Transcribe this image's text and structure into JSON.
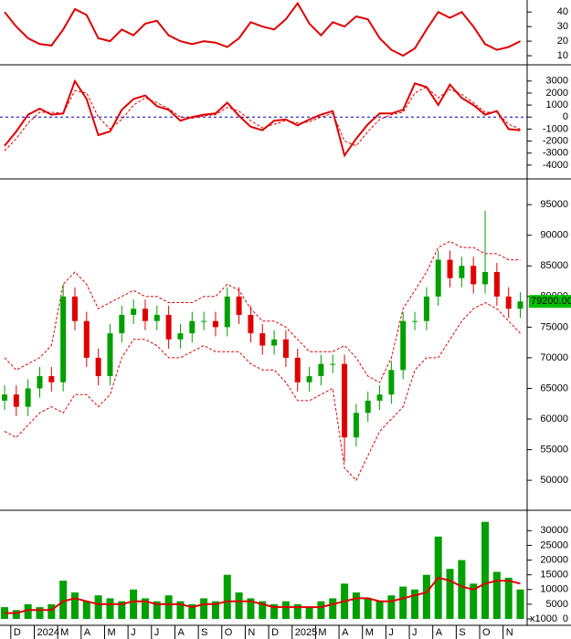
{
  "chart_data": [
    {
      "type": "line",
      "ylim": [
        5,
        47
      ],
      "yticks": [
        10,
        20,
        30,
        40
      ],
      "series": [
        {
          "color": "#e00000",
          "values": [
            40,
            30,
            22,
            18,
            17,
            28,
            42,
            38,
            22,
            20,
            28,
            24,
            32,
            34,
            24,
            20,
            18,
            20,
            19,
            16,
            22,
            33,
            30,
            28,
            35,
            46,
            32,
            24,
            33,
            30,
            37,
            35,
            22,
            14,
            10,
            15,
            28,
            40,
            36,
            40,
            30,
            18,
            14,
            16,
            20
          ]
        }
      ]
    },
    {
      "type": "line",
      "ylim": [
        -5000,
        4200
      ],
      "yticks": [
        -4000,
        -3000,
        -2000,
        -1000,
        0,
        1000,
        2000,
        3000
      ],
      "hlines": [
        {
          "value": 0,
          "color": "#0000c0"
        }
      ],
      "series": [
        {
          "color": "#e00000",
          "values": [
            -2400,
            -1200,
            200,
            700,
            200,
            300,
            3000,
            1500,
            -1500,
            -1200,
            600,
            1500,
            1800,
            900,
            600,
            -300,
            0,
            200,
            300,
            1200,
            100,
            -800,
            -1100,
            -300,
            -200,
            -700,
            -200,
            200,
            500,
            -3200,
            -1800,
            -600,
            300,
            300,
            600,
            2800,
            2500,
            1000,
            2700,
            1600,
            1000,
            200,
            500,
            -1000,
            -1100
          ]
        },
        {
          "color": "#e00000",
          "dashed": true,
          "values": [
            -2800,
            -1800,
            -500,
            400,
            400,
            300,
            2200,
            2000,
            0,
            -1000,
            -200,
            1000,
            1600,
            1200,
            700,
            0,
            -100,
            100,
            200,
            800,
            500,
            -300,
            -900,
            -600,
            -300,
            -500,
            -400,
            0,
            300,
            -2000,
            -2400,
            -1200,
            -200,
            200,
            400,
            2000,
            2500,
            1600,
            2300,
            1900,
            1200,
            400,
            400,
            -600,
            -1000
          ]
        }
      ]
    },
    {
      "type": "candlestick",
      "ylim": [
        45400,
        98900
      ],
      "yticks": [
        50000,
        55000,
        60000,
        65000,
        70000,
        75000,
        80000,
        85000,
        90000,
        95000
      ],
      "up_color": "#00a000",
      "down_color": "#e00000",
      "band_color": "#e00000",
      "open": [
        63000,
        64000,
        62000,
        65000,
        67000,
        66000,
        80000,
        76000,
        70000,
        67000,
        74000,
        77000,
        78000,
        76000,
        77000,
        73000,
        74000,
        76000,
        76000,
        75000,
        80000,
        77000,
        74000,
        72000,
        73000,
        70000,
        66000,
        67000,
        69000,
        69000,
        57000,
        61000,
        63000,
        64000,
        68000,
        76000,
        76000,
        80000,
        86000,
        83000,
        85000,
        82000,
        84000,
        80000,
        78000
      ],
      "close": [
        64000,
        62000,
        65000,
        67000,
        66000,
        80000,
        76000,
        70000,
        67000,
        74000,
        77000,
        78000,
        76000,
        77000,
        73000,
        74000,
        76000,
        76000,
        75000,
        80000,
        77000,
        74000,
        72000,
        73000,
        70000,
        66000,
        67000,
        69000,
        69000,
        57000,
        61000,
        63000,
        64000,
        68000,
        76000,
        76000,
        80000,
        86000,
        83000,
        85000,
        82000,
        84000,
        80000,
        78000,
        79200
      ],
      "high": [
        65500,
        65500,
        66500,
        68500,
        68500,
        82000,
        81500,
        77500,
        71500,
        75500,
        78500,
        79500,
        79500,
        78500,
        78500,
        75500,
        77500,
        77500,
        77500,
        81500,
        81500,
        78500,
        75500,
        74500,
        74500,
        71500,
        68500,
        70500,
        70500,
        70500,
        62500,
        64500,
        65500,
        69500,
        77500,
        77500,
        81500,
        87500,
        87500,
        86500,
        86500,
        94000,
        85500,
        81500,
        80700
      ],
      "low": [
        61500,
        60500,
        60500,
        63500,
        64500,
        64500,
        74500,
        68500,
        65500,
        65500,
        72500,
        75500,
        74500,
        74500,
        71500,
        71500,
        72500,
        74500,
        73500,
        73500,
        75500,
        72500,
        70500,
        70500,
        68500,
        64500,
        64500,
        65500,
        67500,
        53000,
        55500,
        59500,
        61500,
        62500,
        66500,
        74500,
        74500,
        78500,
        81500,
        81500,
        80500,
        80500,
        78500,
        76500,
        76500
      ],
      "upper": [
        70000,
        68000,
        69000,
        70000,
        72000,
        82000,
        84000,
        82000,
        78000,
        79000,
        80000,
        81000,
        80000,
        80000,
        79000,
        79000,
        79000,
        80000,
        80000,
        82000,
        81000,
        78000,
        76000,
        76000,
        75000,
        73000,
        71000,
        71000,
        71000,
        72000,
        70000,
        67000,
        66000,
        70000,
        78000,
        81000,
        84000,
        88000,
        89000,
        88000,
        88000,
        87000,
        87000,
        86000,
        86000
      ],
      "lower": [
        58000,
        57000,
        59000,
        61000,
        62000,
        61000,
        64000,
        64000,
        62000,
        64000,
        70000,
        73000,
        73000,
        72000,
        70000,
        70000,
        71000,
        72000,
        71000,
        71000,
        71000,
        69000,
        68000,
        68000,
        66000,
        63000,
        63000,
        64000,
        65000,
        52000,
        50000,
        54000,
        58000,
        60000,
        62000,
        68000,
        70000,
        70000,
        73000,
        76000,
        78000,
        79000,
        78000,
        76000,
        74000
      ],
      "last_price": {
        "value": 79200,
        "label": "79200.00"
      }
    },
    {
      "type": "bar",
      "ylim": [
        0,
        36000
      ],
      "yticks": [
        0,
        5000,
        10000,
        15000,
        20000,
        25000,
        30000
      ],
      "unit_label": "x1000",
      "color": "#00a000",
      "categories": [
        null,
        "D",
        null,
        "2024",
        null,
        "M",
        null,
        "A",
        null,
        "M",
        null,
        "J",
        null,
        "J",
        null,
        "A",
        null,
        "S",
        null,
        "O",
        null,
        "N",
        null,
        "D",
        null,
        "2025",
        null,
        "M",
        null,
        "A",
        null,
        "M",
        null,
        "J",
        null,
        "J",
        null,
        "A",
        null,
        "S",
        null,
        "O",
        null,
        "N",
        null
      ],
      "values": [
        4000,
        3000,
        5000,
        4000,
        5000,
        13000,
        9000,
        6000,
        8000,
        7000,
        6000,
        10000,
        7000,
        6000,
        8000,
        6000,
        5000,
        7000,
        6000,
        15000,
        9000,
        7000,
        6000,
        5000,
        6000,
        5000,
        4000,
        6000,
        7000,
        12000,
        9000,
        7000,
        6000,
        8000,
        11000,
        10000,
        15000,
        28000,
        17000,
        20000,
        12000,
        33000,
        16000,
        14000,
        10000
      ],
      "line": {
        "color": "#e00000",
        "values": [
          2000,
          2000,
          3000,
          3000,
          3000,
          6000,
          7000,
          6000,
          5000,
          5000,
          5000,
          6000,
          6000,
          5000,
          5000,
          5000,
          4000,
          5000,
          5000,
          6000,
          6000,
          6000,
          5000,
          4000,
          4000,
          4000,
          4000,
          4000,
          5000,
          6000,
          7000,
          7000,
          6000,
          6000,
          7000,
          8000,
          9000,
          14000,
          13000,
          11000,
          10000,
          12000,
          13000,
          13000,
          12000
        ]
      }
    }
  ]
}
